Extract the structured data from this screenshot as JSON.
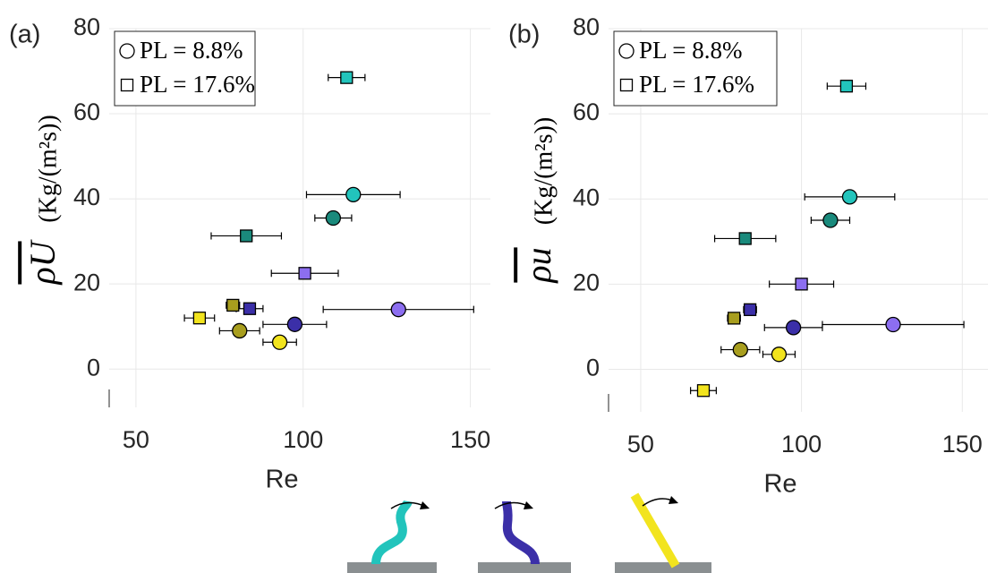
{
  "chart_data": [
    {
      "type": "scatter",
      "panel_label": "(a)",
      "xlabel": "Re",
      "ylabel_symbol": "ρU",
      "ylabel_unit": "(Kg/(m²s))",
      "xlim": [
        42,
        156
      ],
      "ylim": [
        -9,
        80
      ],
      "xticks": [
        50,
        100,
        150
      ],
      "yticks": [
        0,
        20,
        40,
        60,
        80
      ],
      "grid": true,
      "series": [
        {
          "name": "PL = 8.8%",
          "marker": "circle",
          "x": [
            115,
            109,
            128.5,
            97.5,
            81,
            93
          ],
          "values": [
            41,
            35.5,
            14,
            10.5,
            9,
            6.3
          ],
          "xerr": [
            14,
            5.5,
            22.5,
            9.5,
            6,
            5
          ],
          "colors": [
            "#22c4bc",
            "#1a8a7c",
            "#8c6ef0",
            "#3b2fa8",
            "#a89e1e",
            "#f2e41e"
          ]
        },
        {
          "name": "PL = 17.6%",
          "marker": "square",
          "x": [
            113,
            83,
            100.5,
            84,
            79,
            69
          ],
          "values": [
            68.5,
            31.3,
            22.5,
            14.2,
            15,
            12
          ],
          "xerr": [
            5.5,
            10.5,
            10,
            4,
            2,
            4.5
          ],
          "colors": [
            "#22c4bc",
            "#1a8a7c",
            "#8c6ef0",
            "#3b2fa8",
            "#a89e1e",
            "#f2e41e"
          ]
        }
      ]
    },
    {
      "type": "scatter",
      "panel_label": "(b)",
      "xlabel": "Re",
      "ylabel_symbol": "ρu",
      "ylabel_unit": "(Kg/(m²s))",
      "xlim": [
        40,
        158
      ],
      "ylim": [
        -10,
        80
      ],
      "xticks": [
        50,
        100,
        150
      ],
      "yticks": [
        0,
        20,
        40,
        60,
        80
      ],
      "grid": true,
      "series": [
        {
          "name": "PL = 8.8%",
          "marker": "circle",
          "x": [
            115,
            109,
            128.5,
            97.5,
            81,
            93
          ],
          "values": [
            40.5,
            35,
            10.5,
            9.8,
            4.6,
            3.5
          ],
          "xerr": [
            14,
            6,
            22,
            9,
            6,
            5
          ],
          "colors": [
            "#22c4bc",
            "#1a8a7c",
            "#8c6ef0",
            "#3b2fa8",
            "#a89e1e",
            "#f2e41e"
          ]
        },
        {
          "name": "PL = 17.6%",
          "marker": "square",
          "x": [
            114,
            82.5,
            100,
            84,
            79,
            69.5
          ],
          "values": [
            66.5,
            30.7,
            20,
            14,
            12,
            -5
          ],
          "xerr": [
            6,
            9.5,
            10,
            2,
            2,
            4
          ],
          "colors": [
            "#22c4bc",
            "#1a8a7c",
            "#8c6ef0",
            "#3b2fa8",
            "#a89e1e",
            "#f2e41e"
          ]
        }
      ]
    }
  ]
}
